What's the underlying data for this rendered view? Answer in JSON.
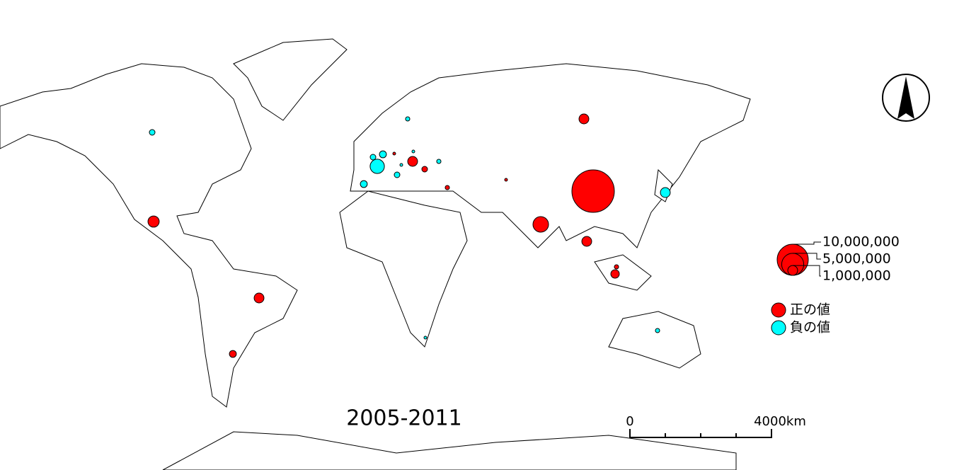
{
  "title": "2005-2011",
  "legend": {
    "size_ticks": [
      {
        "value": 10000000,
        "label": "10,000,000"
      },
      {
        "value": 5000000,
        "label": "5,000,000"
      },
      {
        "value": 1000000,
        "label": "1,000,000"
      }
    ],
    "categories": [
      {
        "label": "正の値",
        "color": "#ff0000"
      },
      {
        "label": "負の値",
        "color": "#00ffff"
      }
    ]
  },
  "points": {
    "values": [
      1000000,
      18600000,
      2500000,
      1300000,
      1000000,
      500000,
      1000000,
      740000,
      190000,
      190000,
      1000000,
      330000,
      80000,
      80000,
      -330000,
      -2100000,
      -500000,
      -330000,
      -500000,
      -330000,
      -190000,
      -190000,
      -80000,
      -1000000,
      -190000,
      -80000,
      -80000
    ]
  },
  "scale_bar": {
    "labels": [
      "0",
      "4000km"
    ]
  }
}
